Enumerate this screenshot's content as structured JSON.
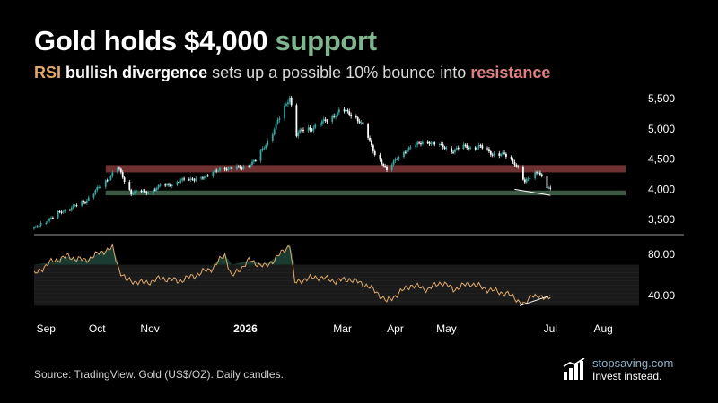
{
  "header": {
    "title_main": "Gold holds $4,000",
    "title_highlight": "support",
    "subtitle_rsi": "RSI",
    "subtitle_divergence": "bullish divergence",
    "subtitle_middle": "sets up a possible 10% bounce into",
    "subtitle_resistance": "resistance"
  },
  "footer": {
    "source": "Source: TradingView. Gold (US$/OZ). Daily candles.",
    "logo_domain": "stopsaving.com",
    "logo_tagline": "Invest instead."
  },
  "colors": {
    "background": "#000000",
    "support": "#7fb58f",
    "resistance": "#e08080",
    "rsi": "#e0a96a",
    "candle_up": "#3aa6a0",
    "candle_down": "#ffffff"
  },
  "chart_data": [
    {
      "type": "candlestick",
      "title": "",
      "ylim": [
        3250,
        5650
      ],
      "yticks": [
        3500,
        4000,
        4500,
        5000,
        5500
      ],
      "ytick_labels": [
        "3,500",
        "4,000",
        "4,500",
        "5,000",
        "5,500"
      ],
      "xlim": [
        "2025-09-01",
        "2026-08-22"
      ],
      "xticks": [
        {
          "date": "2025-09-08",
          "label": "Sep"
        },
        {
          "date": "2025-10-08",
          "label": "Oct"
        },
        {
          "date": "2025-11-08",
          "label": "Nov"
        },
        {
          "date": "2026-01-03",
          "label": "2026",
          "bold": true
        },
        {
          "date": "2026-03-01",
          "label": "Mar"
        },
        {
          "date": "2026-04-01",
          "label": "Apr"
        },
        {
          "date": "2026-05-01",
          "label": "May"
        },
        {
          "date": "2026-07-01",
          "label": "Jul"
        },
        {
          "date": "2026-08-01",
          "label": "Aug"
        }
      ],
      "resistance_zone": {
        "from": "2025-10-13",
        "low": 4280,
        "high": 4400
      },
      "support_zone": {
        "from": "2025-10-13",
        "low": 3900,
        "high": 3980
      },
      "price_divergence_line": {
        "x": [
          "2026-06-10",
          "2026-07-01"
        ],
        "y": [
          4000,
          3900
        ]
      },
      "price_path": {
        "x": [
          "2025-09-01",
          "2025-09-15",
          "2025-10-01",
          "2025-10-10",
          "2025-10-20",
          "2025-10-28",
          "2025-11-05",
          "2025-11-15",
          "2025-11-28",
          "2025-12-10",
          "2025-12-20",
          "2026-01-01",
          "2026-01-10",
          "2026-01-20",
          "2026-01-26",
          "2026-01-29",
          "2026-02-02",
          "2026-02-07",
          "2026-02-15",
          "2026-02-22",
          "2026-03-01",
          "2026-03-07",
          "2026-03-14",
          "2026-03-20",
          "2026-03-27",
          "2026-04-01",
          "2026-04-10",
          "2026-04-20",
          "2026-04-28",
          "2026-05-05",
          "2026-05-12",
          "2026-05-20",
          "2026-05-28",
          "2026-06-05",
          "2026-06-10",
          "2026-06-13",
          "2026-06-16",
          "2026-06-20",
          "2026-06-24",
          "2026-06-28",
          "2026-07-01"
        ],
        "y": [
          3350,
          3600,
          3800,
          4050,
          4350,
          3950,
          3950,
          4050,
          4150,
          4200,
          4350,
          4350,
          4500,
          5000,
          5350,
          5550,
          4900,
          5000,
          5050,
          5200,
          5300,
          5250,
          5000,
          4600,
          4300,
          4500,
          4700,
          4800,
          4700,
          4650,
          4700,
          4700,
          4600,
          4550,
          4450,
          4300,
          4100,
          4250,
          4300,
          4050,
          4000
        ]
      }
    },
    {
      "type": "line",
      "title": "",
      "series": [
        {
          "values_name_hidden": true
        }
      ],
      "ylim": [
        26,
        94
      ],
      "yticks": [
        40,
        80
      ],
      "ytick_labels": [
        "40.00",
        "80.00"
      ],
      "band": [
        30,
        70
      ],
      "x": [
        "2025-09-01",
        "2025-09-10",
        "2025-09-20",
        "2025-10-01",
        "2025-10-10",
        "2025-10-17",
        "2025-10-21",
        "2025-10-25",
        "2025-11-05",
        "2025-11-15",
        "2025-11-25",
        "2025-12-05",
        "2025-12-15",
        "2025-12-22",
        "2025-12-26",
        "2026-01-05",
        "2026-01-15",
        "2026-01-26",
        "2026-01-29",
        "2026-02-01",
        "2026-02-07",
        "2026-02-15",
        "2026-02-25",
        "2026-03-05",
        "2026-03-15",
        "2026-03-22",
        "2026-03-27",
        "2026-04-01",
        "2026-04-10",
        "2026-04-20",
        "2026-04-28",
        "2026-05-05",
        "2026-05-15",
        "2026-05-25",
        "2026-06-05",
        "2026-06-10",
        "2026-06-16",
        "2026-06-20",
        "2026-06-25",
        "2026-07-01"
      ],
      "y": [
        60,
        72,
        78,
        74,
        82,
        86,
        65,
        55,
        52,
        57,
        54,
        60,
        67,
        80,
        58,
        74,
        68,
        84,
        90,
        52,
        56,
        58,
        54,
        56,
        50,
        42,
        34,
        40,
        50,
        46,
        53,
        46,
        52,
        46,
        42,
        38,
        30,
        42,
        37,
        40
      ],
      "divergence_line": {
        "x": [
          "2026-06-13",
          "2026-07-01"
        ],
        "y": [
          30,
          40
        ]
      }
    }
  ]
}
